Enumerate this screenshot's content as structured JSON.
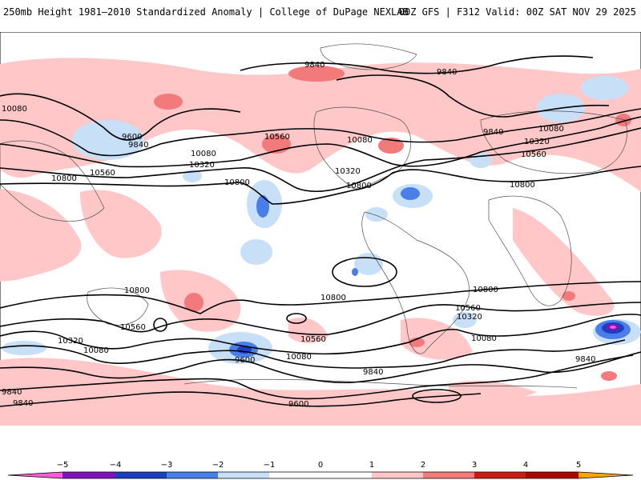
{
  "header": {
    "left_title": "250mb Height 1981–2010 Standardized Anomaly | College of DuPage NEXLAB",
    "right_title": "00Z GFS | F312 Valid: 00Z SAT NOV 29 2025"
  },
  "colors": {
    "neg5": "#ff5bd6",
    "neg4": "#7b16b8",
    "neg3": "#1d3fbf",
    "neg2": "#4a7ee8",
    "neg1": "#c8dff8",
    "pos1": "#ffc7c7",
    "pos2": "#f27a7a",
    "pos3": "#d11616",
    "pos4": "#b30000",
    "pos5": "#ffa500",
    "contour": "#000000",
    "land": "#4d4d4d"
  },
  "contour_labels": [
    {
      "id": "c1",
      "text": "9840"
    },
    {
      "id": "c2",
      "text": "9840"
    },
    {
      "id": "c3",
      "text": "10080"
    },
    {
      "id": "c4",
      "text": "9600"
    },
    {
      "id": "c5",
      "text": "9840"
    },
    {
      "id": "c6",
      "text": "10080"
    },
    {
      "id": "c7",
      "text": "10320"
    },
    {
      "id": "c8",
      "text": "10560"
    },
    {
      "id": "c9",
      "text": "10800"
    },
    {
      "id": "c10",
      "text": "10800"
    },
    {
      "id": "c11",
      "text": "10560"
    },
    {
      "id": "c12",
      "text": "10080"
    },
    {
      "id": "c13",
      "text": "10320"
    },
    {
      "id": "c14",
      "text": "10800"
    },
    {
      "id": "c15",
      "text": "9840"
    },
    {
      "id": "c16",
      "text": "10080"
    },
    {
      "id": "c17",
      "text": "10320"
    },
    {
      "id": "c18",
      "text": "10560"
    },
    {
      "id": "c19",
      "text": "10800"
    },
    {
      "id": "c20",
      "text": "10800"
    },
    {
      "id": "c21",
      "text": "10560"
    },
    {
      "id": "c22",
      "text": "10320"
    },
    {
      "id": "c23",
      "text": "10080"
    },
    {
      "id": "c24",
      "text": "10800"
    },
    {
      "id": "c25",
      "text": "10800"
    },
    {
      "id": "c26",
      "text": "10560"
    },
    {
      "id": "c27",
      "text": "10320"
    },
    {
      "id": "c28",
      "text": "10080"
    },
    {
      "id": "c29",
      "text": "10560"
    },
    {
      "id": "c30",
      "text": "10080"
    },
    {
      "id": "c31",
      "text": "9600"
    },
    {
      "id": "c32",
      "text": "9840"
    },
    {
      "id": "c33",
      "text": "9840"
    },
    {
      "id": "c34",
      "text": "9840"
    },
    {
      "id": "c35",
      "text": "9840"
    },
    {
      "id": "c36",
      "text": "9600"
    }
  ],
  "legend": {
    "ticks": [
      "−5",
      "−4",
      "−3",
      "−2",
      "−1",
      "0",
      "1",
      "2",
      "3",
      "4",
      "5"
    ]
  }
}
